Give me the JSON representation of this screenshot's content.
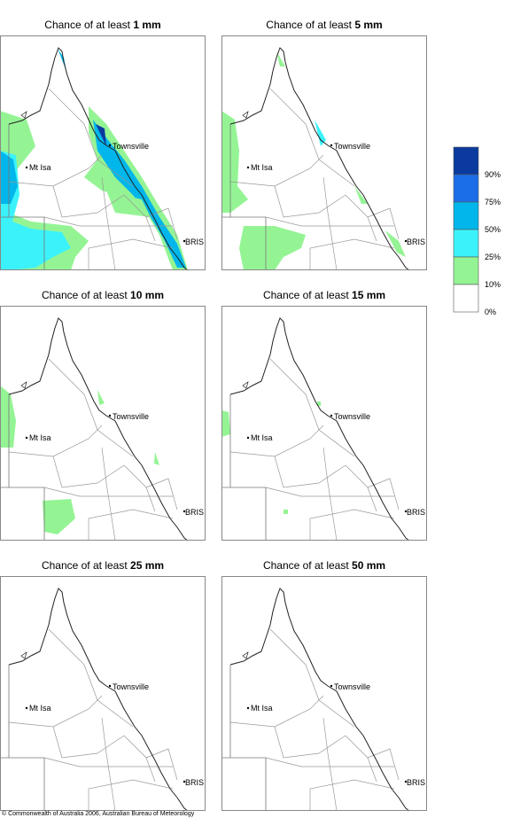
{
  "panels": [
    {
      "title": "Chance of at least",
      "amount": "1 mm"
    },
    {
      "title": "Chance of at least",
      "amount": "5 mm"
    },
    {
      "title": "Chance of at least",
      "amount": "10 mm"
    },
    {
      "title": "Chance of at least",
      "amount": "15 mm"
    },
    {
      "title": "Chance of at least",
      "amount": "25 mm"
    },
    {
      "title": "Chance of at least",
      "amount": "50 mm"
    }
  ],
  "places": {
    "townsville": "Townsville",
    "mt_isa": "Mt Isa",
    "bris": "BRIS"
  },
  "legend": [
    {
      "color": "#0a3a9e",
      "label": "90%"
    },
    {
      "color": "#1c6ee8",
      "label": "75%"
    },
    {
      "color": "#00b6ea",
      "label": "50%"
    },
    {
      "color": "#3cf2fa",
      "label": "25%"
    },
    {
      "color": "#94f494",
      "label": "10%"
    },
    {
      "color": "#ffffff",
      "label": "0%"
    }
  ],
  "footer": "© Commonwealth of Australia 2006, Australian Bureau of Meteorology"
}
